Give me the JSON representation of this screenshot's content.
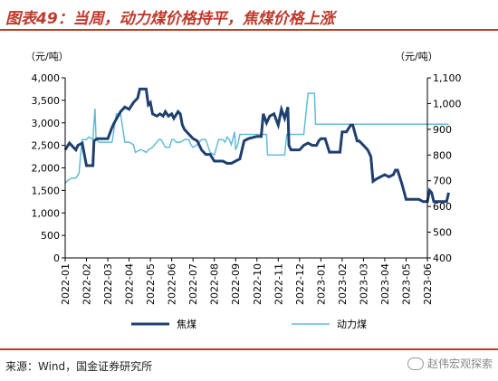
{
  "title": "图表49：当周，动力煤价格持平，焦煤价格上涨",
  "source": "来源：Wind，国金证券研究所",
  "watermark": "赵伟宏观探索",
  "colors": {
    "title": "#c0392b",
    "coking": "#1f3f6e",
    "thermal": "#62bcd8"
  },
  "chart_data": {
    "type": "line",
    "left_axis": {
      "unit": "（元/吨）",
      "ylim": [
        0,
        4000
      ],
      "ticks": [
        "0",
        "500",
        "1,000",
        "1,500",
        "2,000",
        "2,500",
        "3,000",
        "3,500",
        "4,000"
      ]
    },
    "right_axis": {
      "unit": "（元/吨）",
      "ylim": [
        400,
        1100
      ],
      "ticks": [
        "400",
        "500",
        "600",
        "700",
        "800",
        "900",
        "1,000",
        "1,100"
      ]
    },
    "x_ticks": [
      "2022-01",
      "2022-02",
      "2022-03",
      "2022-04",
      "2022-05",
      "2022-06",
      "2022-07",
      "2022-08",
      "2022-09",
      "2022-10",
      "2022-11",
      "2022-12",
      "2023-01",
      "2023-02",
      "2023-03",
      "2023-04",
      "2023-05",
      "2023-06"
    ],
    "series": [
      {
        "name": "焦煤",
        "axis": "left",
        "points": [
          [
            0.0,
            2400
          ],
          [
            0.2,
            2550
          ],
          [
            0.5,
            2400
          ],
          [
            0.6,
            2500
          ],
          [
            0.8,
            2550
          ],
          [
            1.0,
            2050
          ],
          [
            1.3,
            2050
          ],
          [
            1.35,
            2600
          ],
          [
            1.5,
            2650
          ],
          [
            2.0,
            2650
          ],
          [
            2.2,
            2900
          ],
          [
            2.3,
            3000
          ],
          [
            2.6,
            3250
          ],
          [
            2.8,
            3350
          ],
          [
            3.0,
            3300
          ],
          [
            3.2,
            3450
          ],
          [
            3.4,
            3550
          ],
          [
            3.5,
            3750
          ],
          [
            3.6,
            3750
          ],
          [
            3.8,
            3750
          ],
          [
            3.9,
            3400
          ],
          [
            4.0,
            3450
          ],
          [
            4.1,
            3200
          ],
          [
            4.3,
            3150
          ],
          [
            4.45,
            3200
          ],
          [
            4.6,
            3150
          ],
          [
            4.7,
            3250
          ],
          [
            4.85,
            3150
          ],
          [
            5.0,
            3200
          ],
          [
            5.1,
            3100
          ],
          [
            5.3,
            3250
          ],
          [
            5.4,
            3200
          ],
          [
            5.5,
            2950
          ],
          [
            5.6,
            2850
          ],
          [
            5.8,
            2750
          ],
          [
            6.0,
            2650
          ],
          [
            6.2,
            2600
          ],
          [
            6.4,
            2400
          ],
          [
            6.6,
            2300
          ],
          [
            6.8,
            2300
          ],
          [
            7.0,
            2150
          ],
          [
            7.4,
            2150
          ],
          [
            7.6,
            2100
          ],
          [
            7.8,
            2100
          ],
          [
            8.0,
            2150
          ],
          [
            8.2,
            2200
          ],
          [
            8.4,
            2600
          ],
          [
            8.6,
            2650
          ],
          [
            9.0,
            2700
          ],
          [
            9.2,
            2700
          ],
          [
            9.3,
            3200
          ],
          [
            9.45,
            3000
          ],
          [
            9.6,
            3150
          ],
          [
            9.8,
            3200
          ],
          [
            10.0,
            2950
          ],
          [
            10.15,
            3300
          ],
          [
            10.3,
            3100
          ],
          [
            10.45,
            3350
          ],
          [
            10.5,
            2500
          ],
          [
            10.6,
            2400
          ],
          [
            10.8,
            2400
          ],
          [
            11.0,
            2400
          ],
          [
            11.2,
            2500
          ],
          [
            11.4,
            2550
          ],
          [
            11.6,
            2500
          ],
          [
            11.8,
            2500
          ],
          [
            11.9,
            2600
          ],
          [
            12.0,
            2650
          ],
          [
            12.2,
            2650
          ],
          [
            12.4,
            2350
          ],
          [
            12.6,
            2350
          ],
          [
            12.9,
            2350
          ],
          [
            13.0,
            2800
          ],
          [
            13.2,
            2800
          ],
          [
            13.4,
            2950
          ],
          [
            13.5,
            2950
          ],
          [
            13.7,
            2600
          ],
          [
            13.8,
            2600
          ],
          [
            14.0,
            2500
          ],
          [
            14.2,
            2400
          ],
          [
            14.3,
            2300
          ],
          [
            14.35,
            2250
          ],
          [
            14.45,
            1700
          ],
          [
            14.6,
            1750
          ],
          [
            14.8,
            1800
          ],
          [
            15.0,
            1850
          ],
          [
            15.2,
            1800
          ],
          [
            15.4,
            1850
          ],
          [
            15.5,
            1950
          ],
          [
            15.6,
            1950
          ],
          [
            15.8,
            1650
          ],
          [
            16.0,
            1300
          ],
          [
            16.2,
            1300
          ],
          [
            16.4,
            1300
          ],
          [
            16.6,
            1300
          ],
          [
            16.8,
            1250
          ],
          [
            17.0,
            1250
          ],
          [
            17.1,
            1500
          ],
          [
            17.2,
            1450
          ],
          [
            17.3,
            1250
          ],
          [
            17.6,
            1250
          ],
          [
            17.8,
            1250
          ],
          [
            17.9,
            1250
          ],
          [
            18.0,
            1450
          ]
        ]
      },
      {
        "name": "动力煤",
        "axis": "right",
        "points": [
          [
            0.0,
            690
          ],
          [
            0.1,
            700
          ],
          [
            0.3,
            710
          ],
          [
            0.5,
            710
          ],
          [
            0.65,
            730
          ],
          [
            0.7,
            780
          ],
          [
            0.8,
            860
          ],
          [
            0.9,
            860
          ],
          [
            1.0,
            860
          ],
          [
            1.1,
            870
          ],
          [
            1.3,
            860
          ],
          [
            1.4,
            980
          ],
          [
            1.45,
            860
          ],
          [
            1.6,
            850
          ],
          [
            1.8,
            850
          ],
          [
            2.2,
            850
          ],
          [
            2.4,
            960
          ],
          [
            2.6,
            960
          ],
          [
            2.8,
            850
          ],
          [
            3.0,
            850
          ],
          [
            3.2,
            840
          ],
          [
            3.3,
            810
          ],
          [
            3.5,
            820
          ],
          [
            3.6,
            820
          ],
          [
            3.8,
            810
          ],
          [
            3.9,
            820
          ],
          [
            4.1,
            830
          ],
          [
            4.2,
            840
          ],
          [
            4.4,
            860
          ],
          [
            4.5,
            860
          ],
          [
            4.7,
            830
          ],
          [
            4.9,
            830
          ],
          [
            5.0,
            860
          ],
          [
            5.1,
            860
          ],
          [
            5.2,
            850
          ],
          [
            5.4,
            850
          ],
          [
            5.6,
            860
          ],
          [
            5.8,
            860
          ],
          [
            5.9,
            840
          ],
          [
            6.0,
            830
          ],
          [
            6.2,
            840
          ],
          [
            6.4,
            860
          ],
          [
            6.6,
            860
          ],
          [
            6.8,
            810
          ],
          [
            7.0,
            800
          ],
          [
            7.2,
            860
          ],
          [
            7.4,
            860
          ],
          [
            7.5,
            850
          ],
          [
            7.6,
            870
          ],
          [
            7.7,
            860
          ],
          [
            7.8,
            840
          ],
          [
            7.95,
            890
          ],
          [
            8.0,
            820
          ],
          [
            8.1,
            840
          ],
          [
            8.2,
            880
          ],
          [
            8.4,
            880
          ],
          [
            8.6,
            880
          ],
          [
            8.8,
            880
          ],
          [
            9.0,
            880
          ],
          [
            9.2,
            880
          ],
          [
            9.4,
            880
          ],
          [
            9.45,
            880
          ],
          [
            9.5,
            800
          ],
          [
            9.6,
            800
          ],
          [
            9.8,
            800
          ],
          [
            10.0,
            800
          ],
          [
            10.3,
            800
          ],
          [
            10.4,
            880
          ],
          [
            10.6,
            880
          ],
          [
            10.8,
            880
          ],
          [
            11.0,
            880
          ],
          [
            11.2,
            880
          ],
          [
            11.4,
            1040
          ],
          [
            11.6,
            1040
          ],
          [
            11.7,
            1040
          ],
          [
            11.75,
            920
          ],
          [
            11.9,
            920
          ],
          [
            12.2,
            920
          ],
          [
            12.6,
            920
          ],
          [
            13.0,
            920
          ],
          [
            13.5,
            920
          ],
          [
            14.0,
            920
          ],
          [
            14.5,
            920
          ],
          [
            15.0,
            920
          ],
          [
            15.5,
            920
          ],
          [
            16.0,
            920
          ],
          [
            16.5,
            920
          ],
          [
            17.0,
            920
          ],
          [
            17.5,
            920
          ],
          [
            18.0,
            920
          ]
        ]
      }
    ]
  }
}
